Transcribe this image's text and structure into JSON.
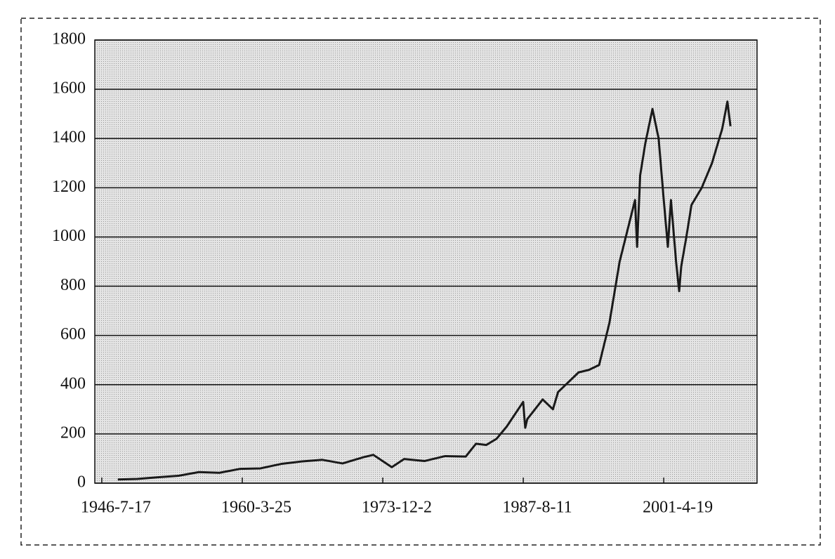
{
  "chart_data": {
    "type": "line",
    "x": [
      1948.1,
      1950,
      1952,
      1954,
      1956,
      1958,
      1960,
      1962,
      1964,
      1966,
      1968,
      1970,
      1972,
      1973,
      1974.8,
      1976,
      1978,
      1980,
      1982,
      1983,
      1984,
      1985,
      1986,
      1987.6,
      1987.8,
      1988,
      1989.5,
      1990.5,
      1991,
      1992,
      1993,
      1994,
      1995,
      1996,
      1997,
      1998.5,
      1998.7,
      1999,
      1999.5,
      2000.2,
      2000.8,
      2001.3,
      2001.7,
      2002,
      2002.5,
      2002.8,
      2003,
      2003.5,
      2004,
      2005,
      2006,
      2007,
      2007.5,
      2007.8
    ],
    "series": [
      {
        "color": "#1a1a1a",
        "values": [
          15,
          17,
          24,
          30,
          45,
          42,
          58,
          60,
          78,
          88,
          95,
          80,
          105,
          115,
          65,
          98,
          90,
          110,
          108,
          160,
          155,
          180,
          230,
          330,
          225,
          260,
          340,
          300,
          370,
          410,
          450,
          460,
          480,
          650,
          900,
          1150,
          960,
          1250,
          1380,
          1520,
          1400,
          1150,
          960,
          1150,
          900,
          780,
          880,
          1000,
          1130,
          1200,
          1300,
          1440,
          1550,
          1450
        ]
      }
    ],
    "xlim": [
      1945.86,
      2010.39
    ],
    "xticks": [
      {
        "value": 1946.54,
        "label": "1946-7-17"
      },
      {
        "value": 1960.23,
        "label": "1960-3-25"
      },
      {
        "value": 1973.92,
        "label": "1973-12-2"
      },
      {
        "value": 1987.61,
        "label": "1987-8-11"
      },
      {
        "value": 2001.3,
        "label": "2001-4-19"
      }
    ],
    "ylim": [
      0,
      1800
    ],
    "yticks": [
      0,
      200,
      400,
      600,
      800,
      1000,
      1200,
      1400,
      1600,
      1800
    ],
    "grid": true
  }
}
